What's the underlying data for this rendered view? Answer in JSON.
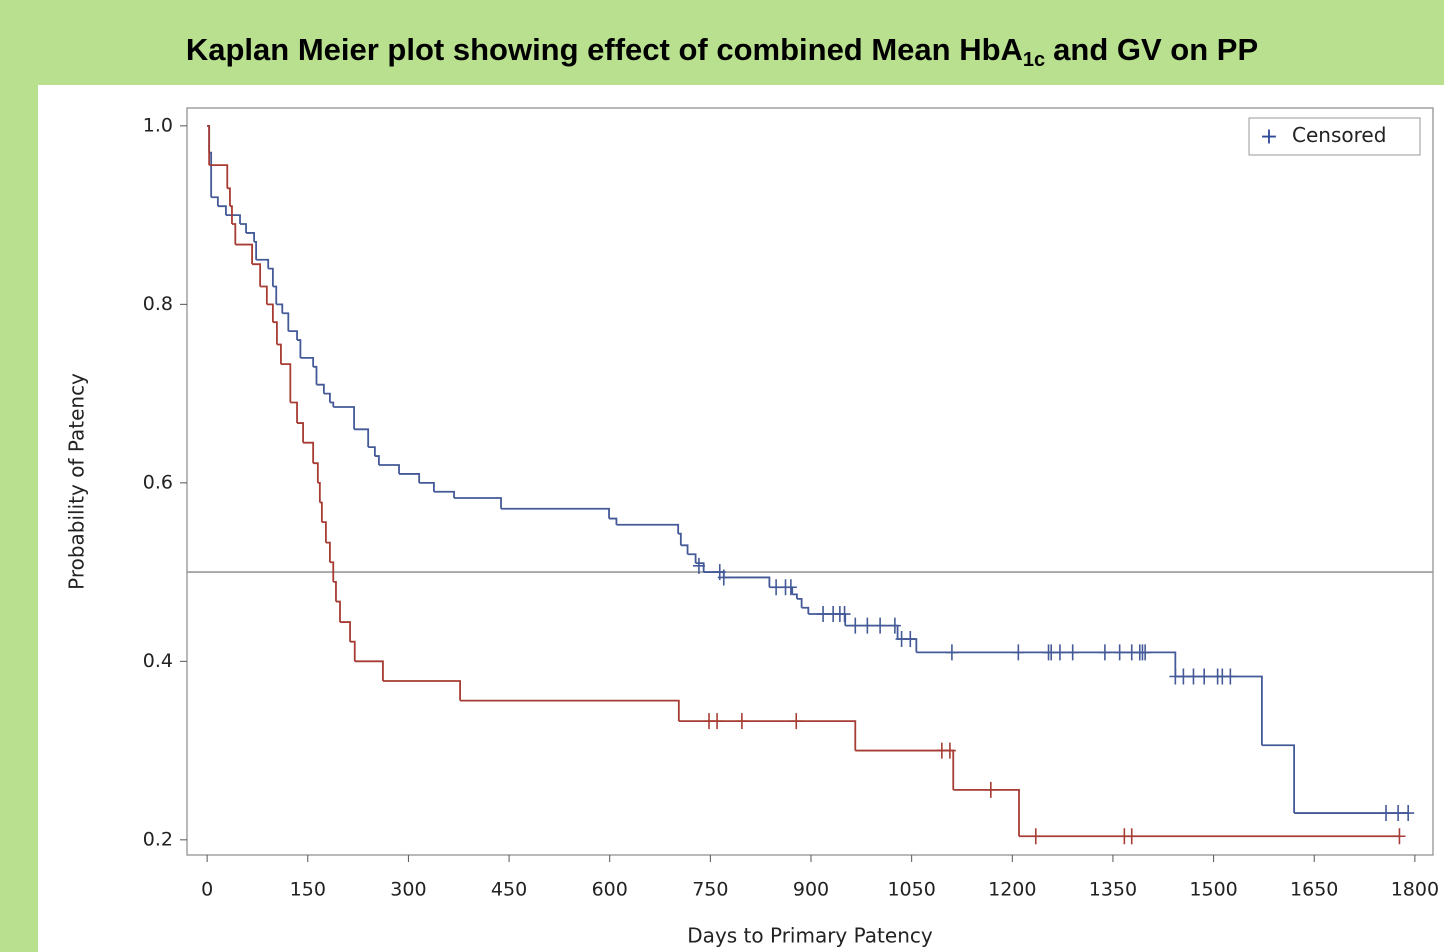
{
  "chart_data": {
    "type": "step",
    "title": {
      "main": "Kaplan Meier plot showing effect of combined Mean HbA",
      "subscript": "1c",
      "rest": "and GV on PP"
    },
    "x_label": "Days to Primary Patency",
    "y_label": "Probability of Patency",
    "xlim": [
      -30,
      1827
    ],
    "ylim": [
      0.183,
      1.02
    ],
    "xticks": [
      0,
      150,
      300,
      450,
      600,
      750,
      900,
      1050,
      1200,
      1350,
      1500,
      1650,
      1800
    ],
    "yticks": [
      0.2,
      0.4,
      0.6,
      0.8,
      {
        "value": 1,
        "label": "1.0"
      }
    ],
    "reference_line": 0.5,
    "legend": {
      "label": "Censored",
      "marker": "+",
      "color": "#2e4a9a",
      "position": "top-right"
    },
    "series": [
      {
        "color": "#445a98",
        "x": [
          0,
          3,
          6,
          16,
          28,
          49,
          58,
          70,
          73,
          91,
          98,
          103,
          112,
          121,
          134,
          139,
          158,
          163,
          174,
          183,
          188,
          219,
          240,
          250,
          256,
          286,
          316,
          338,
          368,
          438,
          599,
          610,
          702,
          706,
          716,
          728,
          740,
          770,
          838,
          872,
          879,
          886,
          896,
          951,
          1029,
          1057,
          1443,
          1572,
          1620,
          1790
        ],
        "values": [
          1.0,
          0.97,
          0.92,
          0.91,
          0.9,
          0.89,
          0.88,
          0.87,
          0.85,
          0.84,
          0.82,
          0.8,
          0.79,
          0.77,
          0.76,
          0.74,
          0.73,
          0.71,
          0.7,
          0.69,
          0.685,
          0.66,
          0.64,
          0.63,
          0.62,
          0.61,
          0.6,
          0.59,
          0.583,
          0.571,
          0.56,
          0.553,
          0.543,
          0.53,
          0.52,
          0.51,
          0.5,
          0.494,
          0.483,
          0.475,
          0.47,
          0.46,
          0.453,
          0.44,
          0.425,
          0.41,
          0.383,
          0.306,
          0.23,
          0.23
        ],
        "censored_x": [
          733,
          764,
          770,
          848,
          862,
          870,
          918,
          933,
          943,
          950,
          966,
          984,
          1003,
          1025,
          1035,
          1048,
          1110,
          1209,
          1254,
          1258,
          1271,
          1290,
          1338,
          1360,
          1378,
          1390,
          1394,
          1398,
          1443,
          1455,
          1470,
          1486,
          1506,
          1513,
          1525,
          1757,
          1775,
          1790
        ],
        "censored_values": [
          0.507,
          0.5,
          0.494,
          0.483,
          0.483,
          0.483,
          0.453,
          0.453,
          0.453,
          0.453,
          0.44,
          0.44,
          0.44,
          0.44,
          0.425,
          0.425,
          0.41,
          0.41,
          0.41,
          0.41,
          0.41,
          0.41,
          0.41,
          0.41,
          0.41,
          0.41,
          0.41,
          0.41,
          0.383,
          0.383,
          0.383,
          0.383,
          0.383,
          0.383,
          0.383,
          0.23,
          0.23,
          0.23
        ]
      },
      {
        "color": "#a63c33",
        "x": [
          0,
          3,
          30,
          34,
          37,
          42,
          67,
          79,
          89,
          98,
          104,
          110,
          124,
          134,
          143,
          158,
          165,
          168,
          171,
          177,
          183,
          188,
          192,
          198,
          213,
          220,
          262,
          377,
          703,
          966,
          1112,
          1210,
          1777
        ],
        "values": [
          1.0,
          0.956,
          0.93,
          0.91,
          0.89,
          0.867,
          0.845,
          0.82,
          0.8,
          0.78,
          0.755,
          0.733,
          0.69,
          0.667,
          0.645,
          0.622,
          0.6,
          0.578,
          0.556,
          0.533,
          0.511,
          0.489,
          0.467,
          0.444,
          0.422,
          0.4,
          0.378,
          0.356,
          0.333,
          0.3,
          0.256,
          0.204,
          0.204
        ],
        "censored_x": [
          748,
          760,
          797,
          878,
          1095,
          1107,
          1168,
          1235,
          1367,
          1378,
          1777
        ],
        "censored_values": [
          0.333,
          0.333,
          0.333,
          0.333,
          0.3,
          0.3,
          0.256,
          0.204,
          0.204,
          0.204,
          0.204
        ]
      }
    ]
  }
}
